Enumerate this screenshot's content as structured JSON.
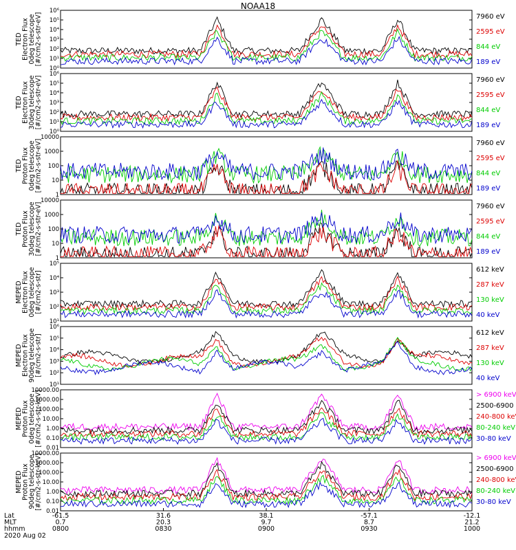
{
  "chart_data": {
    "type": "line",
    "title": "NOAA18",
    "date": "2020 Aug 02",
    "x_axis": {
      "row_labels": [
        "Lat",
        "MLT",
        "hhmm"
      ],
      "columns": [
        {
          "lat": "-61.5",
          "mlt": "0.7",
          "hhmm": "0800"
        },
        {
          "lat": "31.6",
          "mlt": "20.3",
          "hhmm": "0830"
        },
        {
          "lat": "38.1",
          "mlt": "9.7",
          "hhmm": "0900"
        },
        {
          "lat": "-57.1",
          "mlt": "8.7",
          "hhmm": "0930"
        },
        {
          "lat": "-12.1",
          "mlt": "21.2",
          "hhmm": "1000"
        }
      ]
    },
    "panels": [
      {
        "ylabel_lines": [
          "TED",
          "Electron Flux",
          "0deg telescope",
          "[#/cm2-s-str-eV]"
        ],
        "y_scale": "log",
        "yticks": [
          "10⁰",
          "10¹",
          "10²",
          "10³",
          "10⁴",
          "10⁵",
          "10⁶"
        ],
        "ylim_exp": [
          0,
          6
        ],
        "series": [
          {
            "name": "7960 eV",
            "color": "#000000"
          },
          {
            "name": "2595 eV",
            "color": "#dd0000"
          },
          {
            "name": "844 eV",
            "color": "#00cc00"
          },
          {
            "name": "189 eV",
            "color": "#0000cc"
          }
        ]
      },
      {
        "ylabel_lines": [
          "TED",
          "Electron Flux",
          "30deg telescope",
          "[#/cm2-s-str-eV]"
        ],
        "y_scale": "log",
        "yticks": [
          "10⁰",
          "10¹",
          "10²",
          "10³",
          "10⁴",
          "10⁵",
          "10⁶"
        ],
        "ylim_exp": [
          0,
          6
        ],
        "series": [
          {
            "name": "7960 eV",
            "color": "#000000"
          },
          {
            "name": "2595 eV",
            "color": "#dd0000"
          },
          {
            "name": "844 eV",
            "color": "#00cc00"
          },
          {
            "name": "189 eV",
            "color": "#0000cc"
          }
        ]
      },
      {
        "ylabel_lines": [
          "TED",
          "Proton Flux",
          "0deg telescope",
          "[#/cm2-s-str-eV]"
        ],
        "y_scale": "log",
        "yticks": [
          "1",
          "10",
          "100",
          "1000",
          "10000"
        ],
        "ylim_exp": [
          0,
          4
        ],
        "series": [
          {
            "name": "7960 eV",
            "color": "#000000"
          },
          {
            "name": "2595 eV",
            "color": "#dd0000"
          },
          {
            "name": "844 eV",
            "color": "#00cc00"
          },
          {
            "name": "189 eV",
            "color": "#0000cc"
          }
        ]
      },
      {
        "ylabel_lines": [
          "TED",
          "Proton Flux",
          "30deg telescope",
          "[#/cm2-s-str-eV]"
        ],
        "y_scale": "log",
        "yticks": [
          "1",
          "10",
          "100",
          "1000",
          "10000"
        ],
        "ylim_exp": [
          0,
          4
        ],
        "series": [
          {
            "name": "7960 eV",
            "color": "#000000"
          },
          {
            "name": "2595 eV",
            "color": "#dd0000"
          },
          {
            "name": "844 eV",
            "color": "#00cc00"
          },
          {
            "name": "189 eV",
            "color": "#0000cc"
          }
        ]
      },
      {
        "ylabel_lines": [
          "MEPED",
          "Electron Flux",
          "0deg telescope",
          "[#/cm2-s-str]"
        ],
        "y_scale": "log",
        "yticks": [
          "10¹",
          "10²",
          "10³",
          "10⁴",
          "10⁵"
        ],
        "ylim_exp": [
          1,
          5
        ],
        "series": [
          {
            "name": "612 keV",
            "color": "#000000"
          },
          {
            "name": "287 keV",
            "color": "#dd0000"
          },
          {
            "name": "130 keV",
            "color": "#00cc00"
          },
          {
            "name": "40 keV",
            "color": "#0000cc"
          }
        ]
      },
      {
        "ylabel_lines": [
          "MEPED",
          "Electron Flux",
          "90deg telescope",
          "[#/cm2-s-str]"
        ],
        "y_scale": "log",
        "yticks": [
          "10¹",
          "10²",
          "10³",
          "10⁴",
          "10⁵",
          "10⁶"
        ],
        "ylim_exp": [
          1,
          6
        ],
        "series": [
          {
            "name": "612 keV",
            "color": "#000000"
          },
          {
            "name": "287 keV",
            "color": "#dd0000"
          },
          {
            "name": "130 keV",
            "color": "#00cc00"
          },
          {
            "name": "40 keV",
            "color": "#0000cc"
          }
        ]
      },
      {
        "ylabel_lines": [
          "MEPED",
          "Proton Flux",
          "0deg telescope",
          "[#/cm2-s-str-keV]"
        ],
        "y_scale": "log",
        "yticks": [
          "0.01",
          "0.10",
          "1.00",
          "10.00",
          "100.00",
          "1000.00",
          "10000.00"
        ],
        "ylim_exp": [
          -2,
          4
        ],
        "series": [
          {
            "name": "> 6900 keV",
            "color": "#ee00ee"
          },
          {
            "name": "2500-6900",
            "color": "#000000"
          },
          {
            "name": "240-800 keV",
            "color": "#dd0000"
          },
          {
            "name": "80-240 keV",
            "color": "#00cc00"
          },
          {
            "name": "30-80 keV",
            "color": "#0000cc"
          }
        ]
      },
      {
        "ylabel_lines": [
          "MEPED",
          "Proton Flux",
          "90deg telescope",
          "[#/cm2-s-str-keV]"
        ],
        "y_scale": "log",
        "yticks": [
          "0.01",
          "0.10",
          "1.00",
          "10.00",
          "100.00",
          "1000.00",
          "10000.00"
        ],
        "ylim_exp": [
          -2,
          4
        ],
        "series": [
          {
            "name": "> 6900 keV",
            "color": "#ee00ee"
          },
          {
            "name": "2500-6900",
            "color": "#000000"
          },
          {
            "name": "240-800 keV",
            "color": "#dd0000"
          },
          {
            "name": "80-240 keV",
            "color": "#00cc00"
          },
          {
            "name": "30-80 keV",
            "color": "#0000cc"
          }
        ]
      }
    ]
  }
}
